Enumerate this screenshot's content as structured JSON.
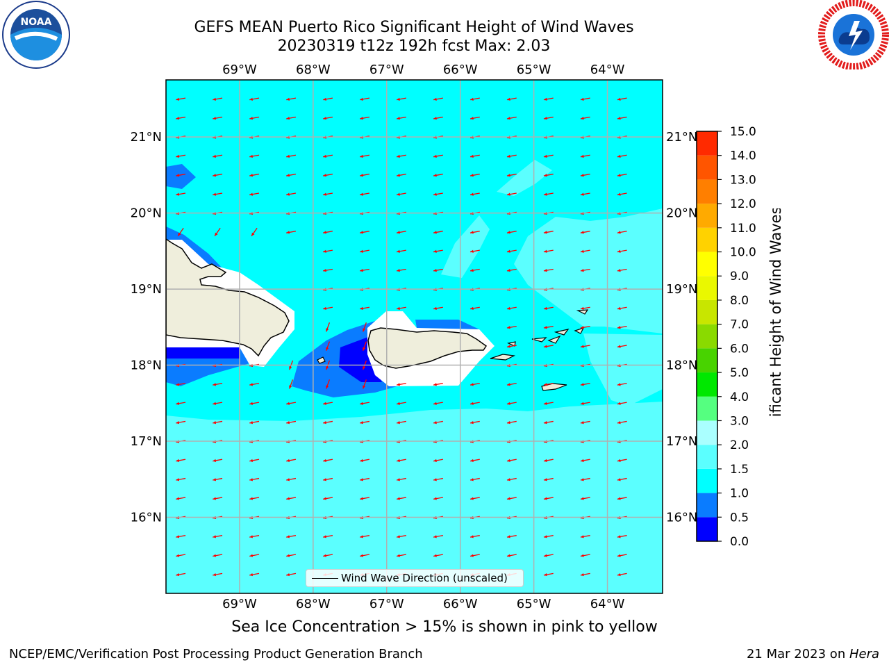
{
  "title": {
    "line1": "GEFS MEAN Puerto Rico Significant Height of Wind Waves",
    "line2": "20230319 t12z 192h fcst   Max: 2.03"
  },
  "logos": {
    "left": "noaa-logo",
    "right": "nws-logo"
  },
  "map": {
    "extent_lon": [
      -70.0,
      -63.25
    ],
    "extent_lat": [
      15.0,
      21.75
    ],
    "lon_ticks": [
      "69°W",
      "68°W",
      "67°W",
      "66°W",
      "65°W",
      "64°W"
    ],
    "lat_ticks": [
      "16°N",
      "17°N",
      "18°N",
      "19°N",
      "20°N",
      "21°N"
    ],
    "grid": true,
    "vectors": {
      "color": "#ff0000",
      "direction": "towards west-southwest"
    }
  },
  "legend": {
    "label": "Wind Wave Direction (unscaled)",
    "placement": "lower-center"
  },
  "colorbar": {
    "title": "Significant Height of Wind Waves [m]",
    "tick_labels": [
      "0.0",
      "0.5",
      "1.0",
      "1.5",
      "2.0",
      "3.0",
      "4.0",
      "5.0",
      "6.0",
      "7.0",
      "8.0",
      "9.0",
      "10.0",
      "11.0",
      "12.0",
      "13.0",
      "14.0",
      "15.0"
    ],
    "colors": [
      "#0000ff",
      "#0a7cff",
      "#00ffff",
      "#5bffff",
      "#aaffff",
      "#55ff80",
      "#00e800",
      "#48d300",
      "#8ada00",
      "#c8e600",
      "#eaf800",
      "#ffff00",
      "#ffd200",
      "#ffaa00",
      "#ff7f00",
      "#ff5500",
      "#ff2a00",
      "#ff0000"
    ]
  },
  "notes": {
    "sea_ice": "Sea Ice Concentration > 15% is shown in pink to yellow",
    "footer_left": "NCEP/EMC/Verification Post Processing Product Generation Branch",
    "footer_date": "21 Mar 2023 on ",
    "footer_host": "Hera"
  }
}
